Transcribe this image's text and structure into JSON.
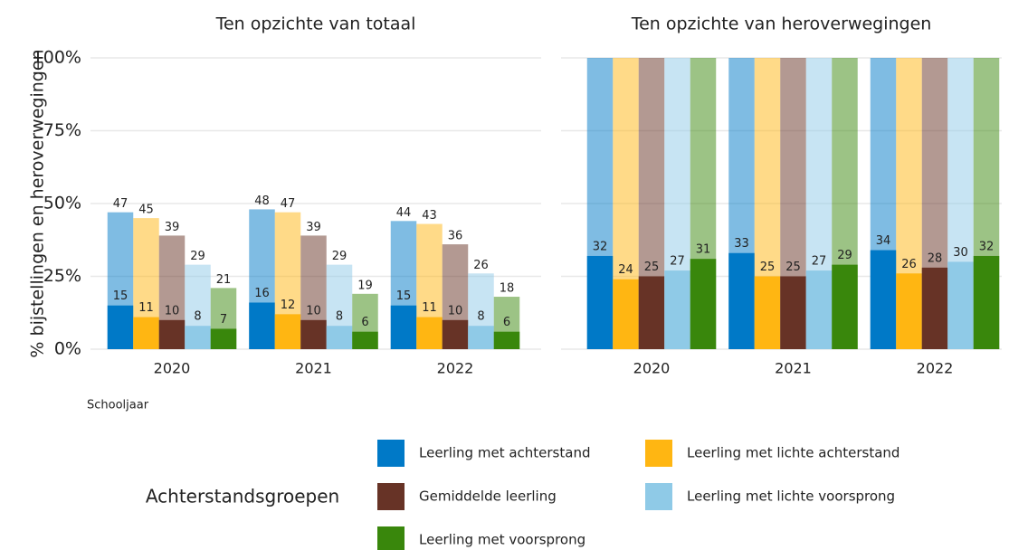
{
  "ylabel": "% bijstellingen en heroverwegingen",
  "xlabel": "Schooljaar",
  "legend_title": "Achterstandsgroepen",
  "chart_data": [
    {
      "type": "bar",
      "title": "Ten opzichte van totaal",
      "categories": [
        "2020",
        "2021",
        "2022"
      ],
      "ylim": [
        0,
        100
      ],
      "yticks": [
        {
          "value": 0,
          "label": "0%"
        },
        {
          "value": 25,
          "label": "25%"
        },
        {
          "value": 50,
          "label": "50%"
        },
        {
          "value": 75,
          "label": "75%"
        },
        {
          "value": 100,
          "label": "100%"
        }
      ],
      "grid": true,
      "ytick_labels": true,
      "total_labels": true,
      "series": [
        {
          "name": "Leerling met achterstand",
          "color": "#0079c7",
          "totals": [
            47,
            48,
            44
          ],
          "values": [
            15,
            16,
            15
          ]
        },
        {
          "name": "Leerling met lichte achterstand",
          "color": "#ffb612",
          "totals": [
            45,
            47,
            43
          ],
          "values": [
            11,
            12,
            11
          ]
        },
        {
          "name": "Gemiddelde leerling",
          "color": "#673326",
          "totals": [
            39,
            39,
            36
          ],
          "values": [
            10,
            10,
            10
          ]
        },
        {
          "name": "Leerling met lichte voorsprong",
          "color": "#8fcae7",
          "totals": [
            29,
            29,
            26
          ],
          "values": [
            8,
            8,
            8
          ]
        },
        {
          "name": "Leerling met voorsprong",
          "color": "#39870c",
          "totals": [
            21,
            19,
            18
          ],
          "values": [
            7,
            6,
            6
          ]
        }
      ]
    },
    {
      "type": "bar",
      "title": "Ten opzichte van heroverwegingen",
      "categories": [
        "2020",
        "2021",
        "2022"
      ],
      "ylim": [
        0,
        100
      ],
      "yticks": [
        0,
        25,
        50,
        75,
        100
      ],
      "grid": true,
      "ytick_labels": false,
      "total_labels": false,
      "series": [
        {
          "color": "#0079c7",
          "totals": [
            100,
            100,
            100
          ],
          "values": [
            32,
            33,
            34
          ]
        },
        {
          "color": "#ffb612",
          "totals": [
            100,
            100,
            100
          ],
          "values": [
            24,
            25,
            26
          ]
        },
        {
          "color": "#673326",
          "totals": [
            100,
            100,
            100
          ],
          "values": [
            25,
            25,
            28
          ]
        },
        {
          "color": "#8fcae7",
          "totals": [
            100,
            100,
            100
          ],
          "values": [
            27,
            27,
            30
          ]
        },
        {
          "color": "#39870c",
          "totals": [
            100,
            100,
            100
          ],
          "values": [
            31,
            29,
            32
          ]
        }
      ]
    }
  ]
}
